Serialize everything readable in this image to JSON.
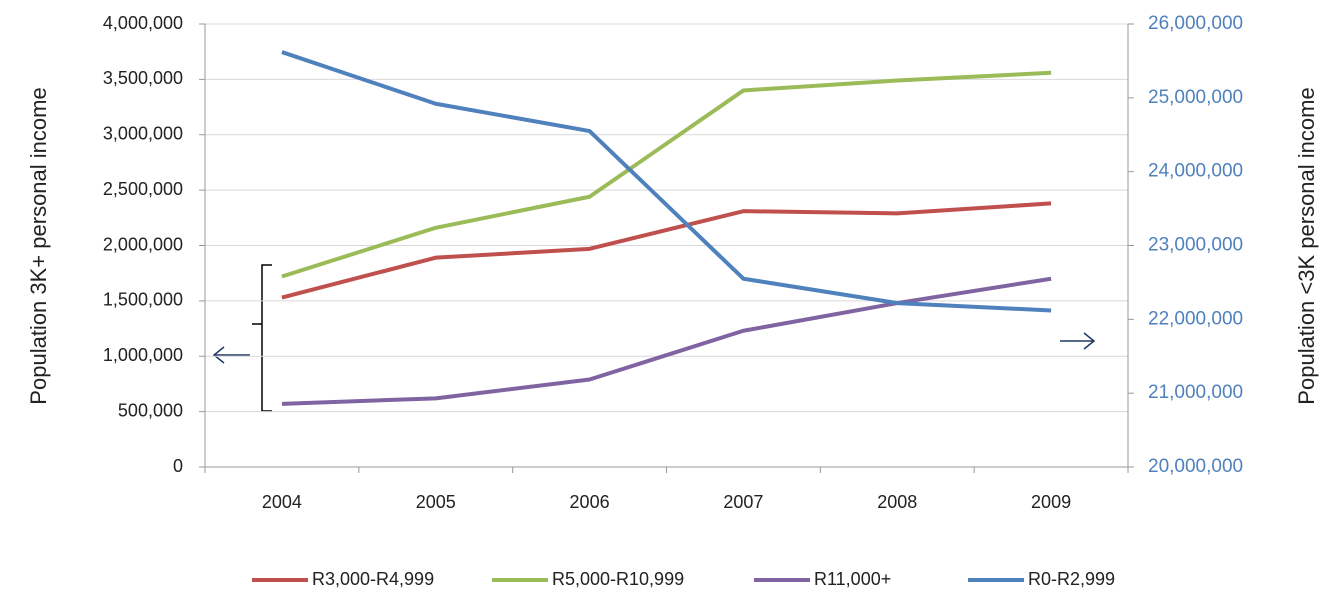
{
  "chart_data": {
    "type": "line",
    "y_label": "Population 3K+ personal income",
    "y2_label": "Population <3K personal income",
    "categories": [
      "2004",
      "2005",
      "2006",
      "2007",
      "2008",
      "2009"
    ],
    "series": [
      {
        "name": "R3,000-R4,999",
        "color": "#c0504d",
        "values": [
          1530000,
          1890000,
          1970000,
          2310000,
          2290000,
          2380000
        ]
      },
      {
        "name": "R5,000-R10,999",
        "color": "#9bbb59",
        "values": [
          1720000,
          2160000,
          2440000,
          3400000,
          3490000,
          3560000
        ]
      },
      {
        "name": "R11,000+",
        "color": "#8064a2",
        "values": [
          570000,
          620000,
          790000,
          1230000,
          1480000,
          1700000
        ]
      },
      {
        "name": "R0-R2,999",
        "color": "#4f81bd",
        "axis": "y2",
        "values": [
          25620000,
          24920000,
          24550000,
          22550000,
          22220000,
          22120000
        ]
      }
    ],
    "ylim": [
      0,
      4000000
    ],
    "yticks": [
      0,
      {
        "value": 500000,
        "label": "500,000"
      },
      {
        "value": 1000000,
        "label": "1,000,000"
      },
      {
        "value": 1500000,
        "label": "1,500,000"
      },
      {
        "value": 2000000,
        "label": "2,000,000"
      },
      {
        "value": 2500000,
        "label": "2,500,000"
      },
      {
        "value": 3000000,
        "label": "3,000,000"
      },
      {
        "value": 3500000,
        "label": "3,500,000"
      },
      {
        "value": 4000000,
        "label": "4,000,000"
      }
    ],
    "y2lim": [
      20000000,
      26000000
    ],
    "y2ticks": [
      {
        "value": 20000000,
        "label": "20,000,000"
      },
      {
        "value": 21000000,
        "label": "21,000,000"
      },
      {
        "value": 22000000,
        "label": "22,000,000"
      },
      {
        "value": 23000000,
        "label": "23,000,000"
      },
      {
        "value": 24000000,
        "label": "24,000,000"
      },
      {
        "value": 25000000,
        "label": "25,000,000"
      },
      {
        "value": 26000000,
        "label": "26,000,000"
      }
    ],
    "grid": true
  }
}
